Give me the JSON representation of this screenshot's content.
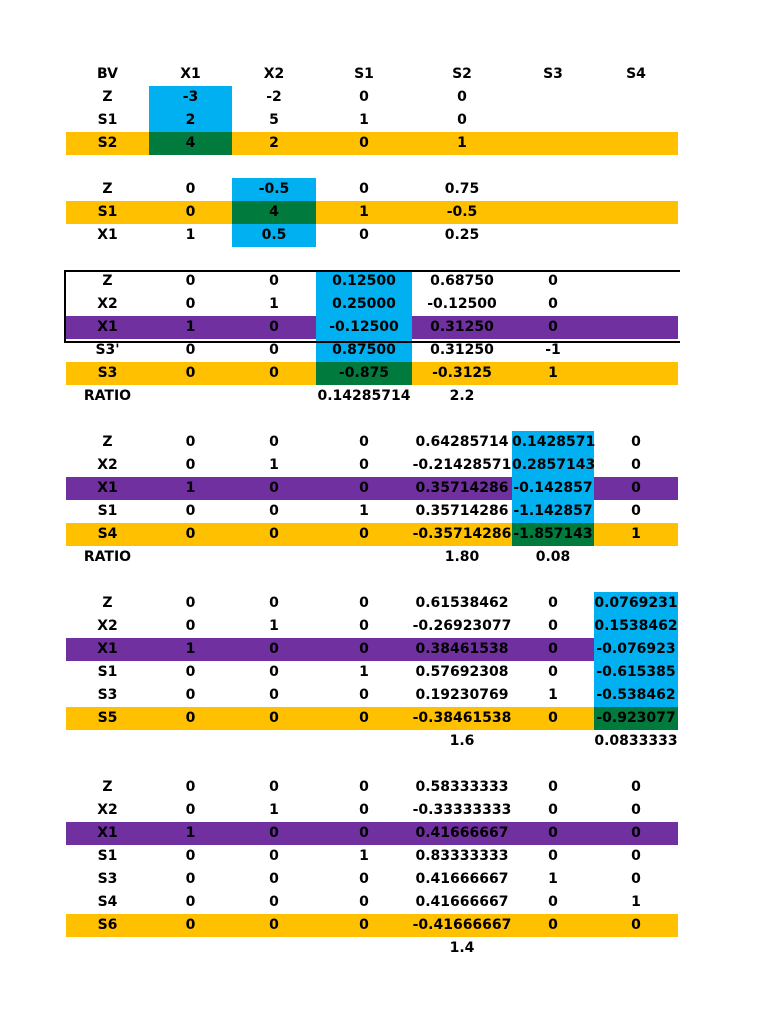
{
  "tableau": {
    "rows": [
      {
        "cells": [
          "BV",
          "X1",
          "X2",
          "S1",
          "S2",
          "S3",
          "S4"
        ],
        "bg": "",
        "blue": [],
        "green": []
      },
      {
        "cells": [
          "Z",
          "-3",
          "-2",
          "0",
          "0",
          "",
          ""
        ],
        "bg": "",
        "blue": [
          1
        ],
        "green": []
      },
      {
        "cells": [
          "S1",
          "2",
          "5",
          "1",
          "0",
          "",
          ""
        ],
        "bg": "",
        "blue": [
          1
        ],
        "green": []
      },
      {
        "cells": [
          "S2",
          "4",
          "2",
          "0",
          "1",
          "",
          ""
        ],
        "bg": "orange",
        "blue": [],
        "green": [
          1
        ]
      },
      {
        "cells": [
          "",
          "",
          "",
          "",
          "",
          "",
          ""
        ],
        "bg": "",
        "blue": [],
        "green": []
      },
      {
        "cells": [
          "Z",
          "0",
          "-0.5",
          "0",
          "0.75",
          "",
          ""
        ],
        "bg": "",
        "blue": [
          2
        ],
        "green": []
      },
      {
        "cells": [
          "S1",
          "0",
          "4",
          "1",
          "-0.5",
          "",
          ""
        ],
        "bg": "orange",
        "blue": [],
        "green": [
          2
        ]
      },
      {
        "cells": [
          "X1",
          "1",
          "0.5",
          "0",
          "0.25",
          "",
          ""
        ],
        "bg": "",
        "blue": [
          2
        ],
        "green": []
      },
      {
        "cells": [
          "",
          "",
          "",
          "",
          "",
          "",
          ""
        ],
        "bg": "",
        "blue": [],
        "green": []
      },
      {
        "cells": [
          "Z",
          "0",
          "0",
          "0.12500",
          "0.68750",
          "0",
          ""
        ],
        "bg": "",
        "blue": [
          3
        ],
        "green": []
      },
      {
        "cells": [
          "X2",
          "0",
          "1",
          "0.25000",
          "-0.12500",
          "0",
          ""
        ],
        "bg": "",
        "blue": [
          3
        ],
        "green": []
      },
      {
        "cells": [
          "X1",
          "1",
          "0",
          "-0.12500",
          "0.31250",
          "0",
          ""
        ],
        "bg": "purple",
        "blue": [
          3
        ],
        "green": []
      },
      {
        "cells": [
          "S3'",
          "0",
          "0",
          "0.87500",
          "0.31250",
          "-1",
          ""
        ],
        "bg": "",
        "blue": [
          3
        ],
        "green": []
      },
      {
        "cells": [
          "S3",
          "0",
          "0",
          "-0.875",
          "-0.3125",
          "1",
          ""
        ],
        "bg": "orange",
        "blue": [],
        "green": [
          3
        ]
      },
      {
        "cells": [
          "RATIO",
          "",
          "",
          "0.14285714",
          "2.2",
          "",
          ""
        ],
        "bg": "",
        "blue": [],
        "green": []
      },
      {
        "cells": [
          "",
          "",
          "",
          "",
          "",
          "",
          ""
        ],
        "bg": "",
        "blue": [],
        "green": []
      },
      {
        "cells": [
          "Z",
          "0",
          "0",
          "0",
          "0.64285714",
          "0.1428571",
          "0"
        ],
        "bg": "",
        "blue": [
          5
        ],
        "green": []
      },
      {
        "cells": [
          "X2",
          "0",
          "1",
          "0",
          "-0.21428571",
          "0.2857143",
          "0"
        ],
        "bg": "",
        "blue": [
          5
        ],
        "green": []
      },
      {
        "cells": [
          "X1",
          "1",
          "0",
          "0",
          "0.35714286",
          "-0.142857",
          "0"
        ],
        "bg": "purple",
        "blue": [
          5
        ],
        "green": []
      },
      {
        "cells": [
          "S1",
          "0",
          "0",
          "1",
          "0.35714286",
          "-1.142857",
          "0"
        ],
        "bg": "",
        "blue": [
          5
        ],
        "green": []
      },
      {
        "cells": [
          "S4",
          "0",
          "0",
          "0",
          "-0.35714286",
          "-1.857143",
          "1"
        ],
        "bg": "orange",
        "blue": [],
        "green": [
          5
        ]
      },
      {
        "cells": [
          "RATIO",
          "",
          "",
          "",
          "1.80",
          "0.08",
          ""
        ],
        "bg": "",
        "blue": [],
        "green": []
      },
      {
        "cells": [
          "",
          "",
          "",
          "",
          "",
          "",
          ""
        ],
        "bg": "",
        "blue": [],
        "green": []
      },
      {
        "cells": [
          "Z",
          "0",
          "0",
          "0",
          "0.61538462",
          "0",
          "0.0769231"
        ],
        "bg": "",
        "blue": [
          6
        ],
        "green": []
      },
      {
        "cells": [
          "X2",
          "0",
          "1",
          "0",
          "-0.26923077",
          "0",
          "0.1538462"
        ],
        "bg": "",
        "blue": [
          6
        ],
        "green": []
      },
      {
        "cells": [
          "X1",
          "1",
          "0",
          "0",
          "0.38461538",
          "0",
          "-0.076923"
        ],
        "bg": "purple",
        "blue": [
          6
        ],
        "green": []
      },
      {
        "cells": [
          "S1",
          "0",
          "0",
          "1",
          "0.57692308",
          "0",
          "-0.615385"
        ],
        "bg": "",
        "blue": [
          6
        ],
        "green": []
      },
      {
        "cells": [
          "S3",
          "0",
          "0",
          "0",
          "0.19230769",
          "1",
          "-0.538462"
        ],
        "bg": "",
        "blue": [
          6
        ],
        "green": []
      },
      {
        "cells": [
          "S5",
          "0",
          "0",
          "0",
          "-0.38461538",
          "0",
          "-0.923077"
        ],
        "bg": "orange",
        "blue": [],
        "green": [
          6
        ]
      },
      {
        "cells": [
          "",
          "",
          "",
          "",
          "1.6",
          "",
          "0.0833333"
        ],
        "bg": "",
        "blue": [],
        "green": []
      },
      {
        "cells": [
          "",
          "",
          "",
          "",
          "",
          "",
          ""
        ],
        "bg": "",
        "blue": [],
        "green": []
      },
      {
        "cells": [
          "Z",
          "0",
          "0",
          "0",
          "0.58333333",
          "0",
          "0"
        ],
        "bg": "",
        "blue": [],
        "green": []
      },
      {
        "cells": [
          "X2",
          "0",
          "1",
          "0",
          "-0.33333333",
          "0",
          "0"
        ],
        "bg": "",
        "blue": [],
        "green": []
      },
      {
        "cells": [
          "X1",
          "1",
          "0",
          "0",
          "0.41666667",
          "0",
          "0"
        ],
        "bg": "purple",
        "blue": [],
        "green": []
      },
      {
        "cells": [
          "S1",
          "0",
          "0",
          "1",
          "0.83333333",
          "0",
          "0"
        ],
        "bg": "",
        "blue": [],
        "green": []
      },
      {
        "cells": [
          "S3",
          "0",
          "0",
          "0",
          "0.41666667",
          "1",
          "0"
        ],
        "bg": "",
        "blue": [],
        "green": []
      },
      {
        "cells": [
          "S4",
          "0",
          "0",
          "0",
          "0.41666667",
          "0",
          "1"
        ],
        "bg": "",
        "blue": [],
        "green": []
      },
      {
        "cells": [
          "S6",
          "0",
          "0",
          "0",
          "-0.41666667",
          "0",
          "0"
        ],
        "bg": "orange",
        "blue": [],
        "green": []
      },
      {
        "cells": [
          "",
          "",
          "",
          "",
          "1.4",
          "",
          ""
        ],
        "bg": "",
        "blue": [],
        "green": []
      }
    ]
  }
}
